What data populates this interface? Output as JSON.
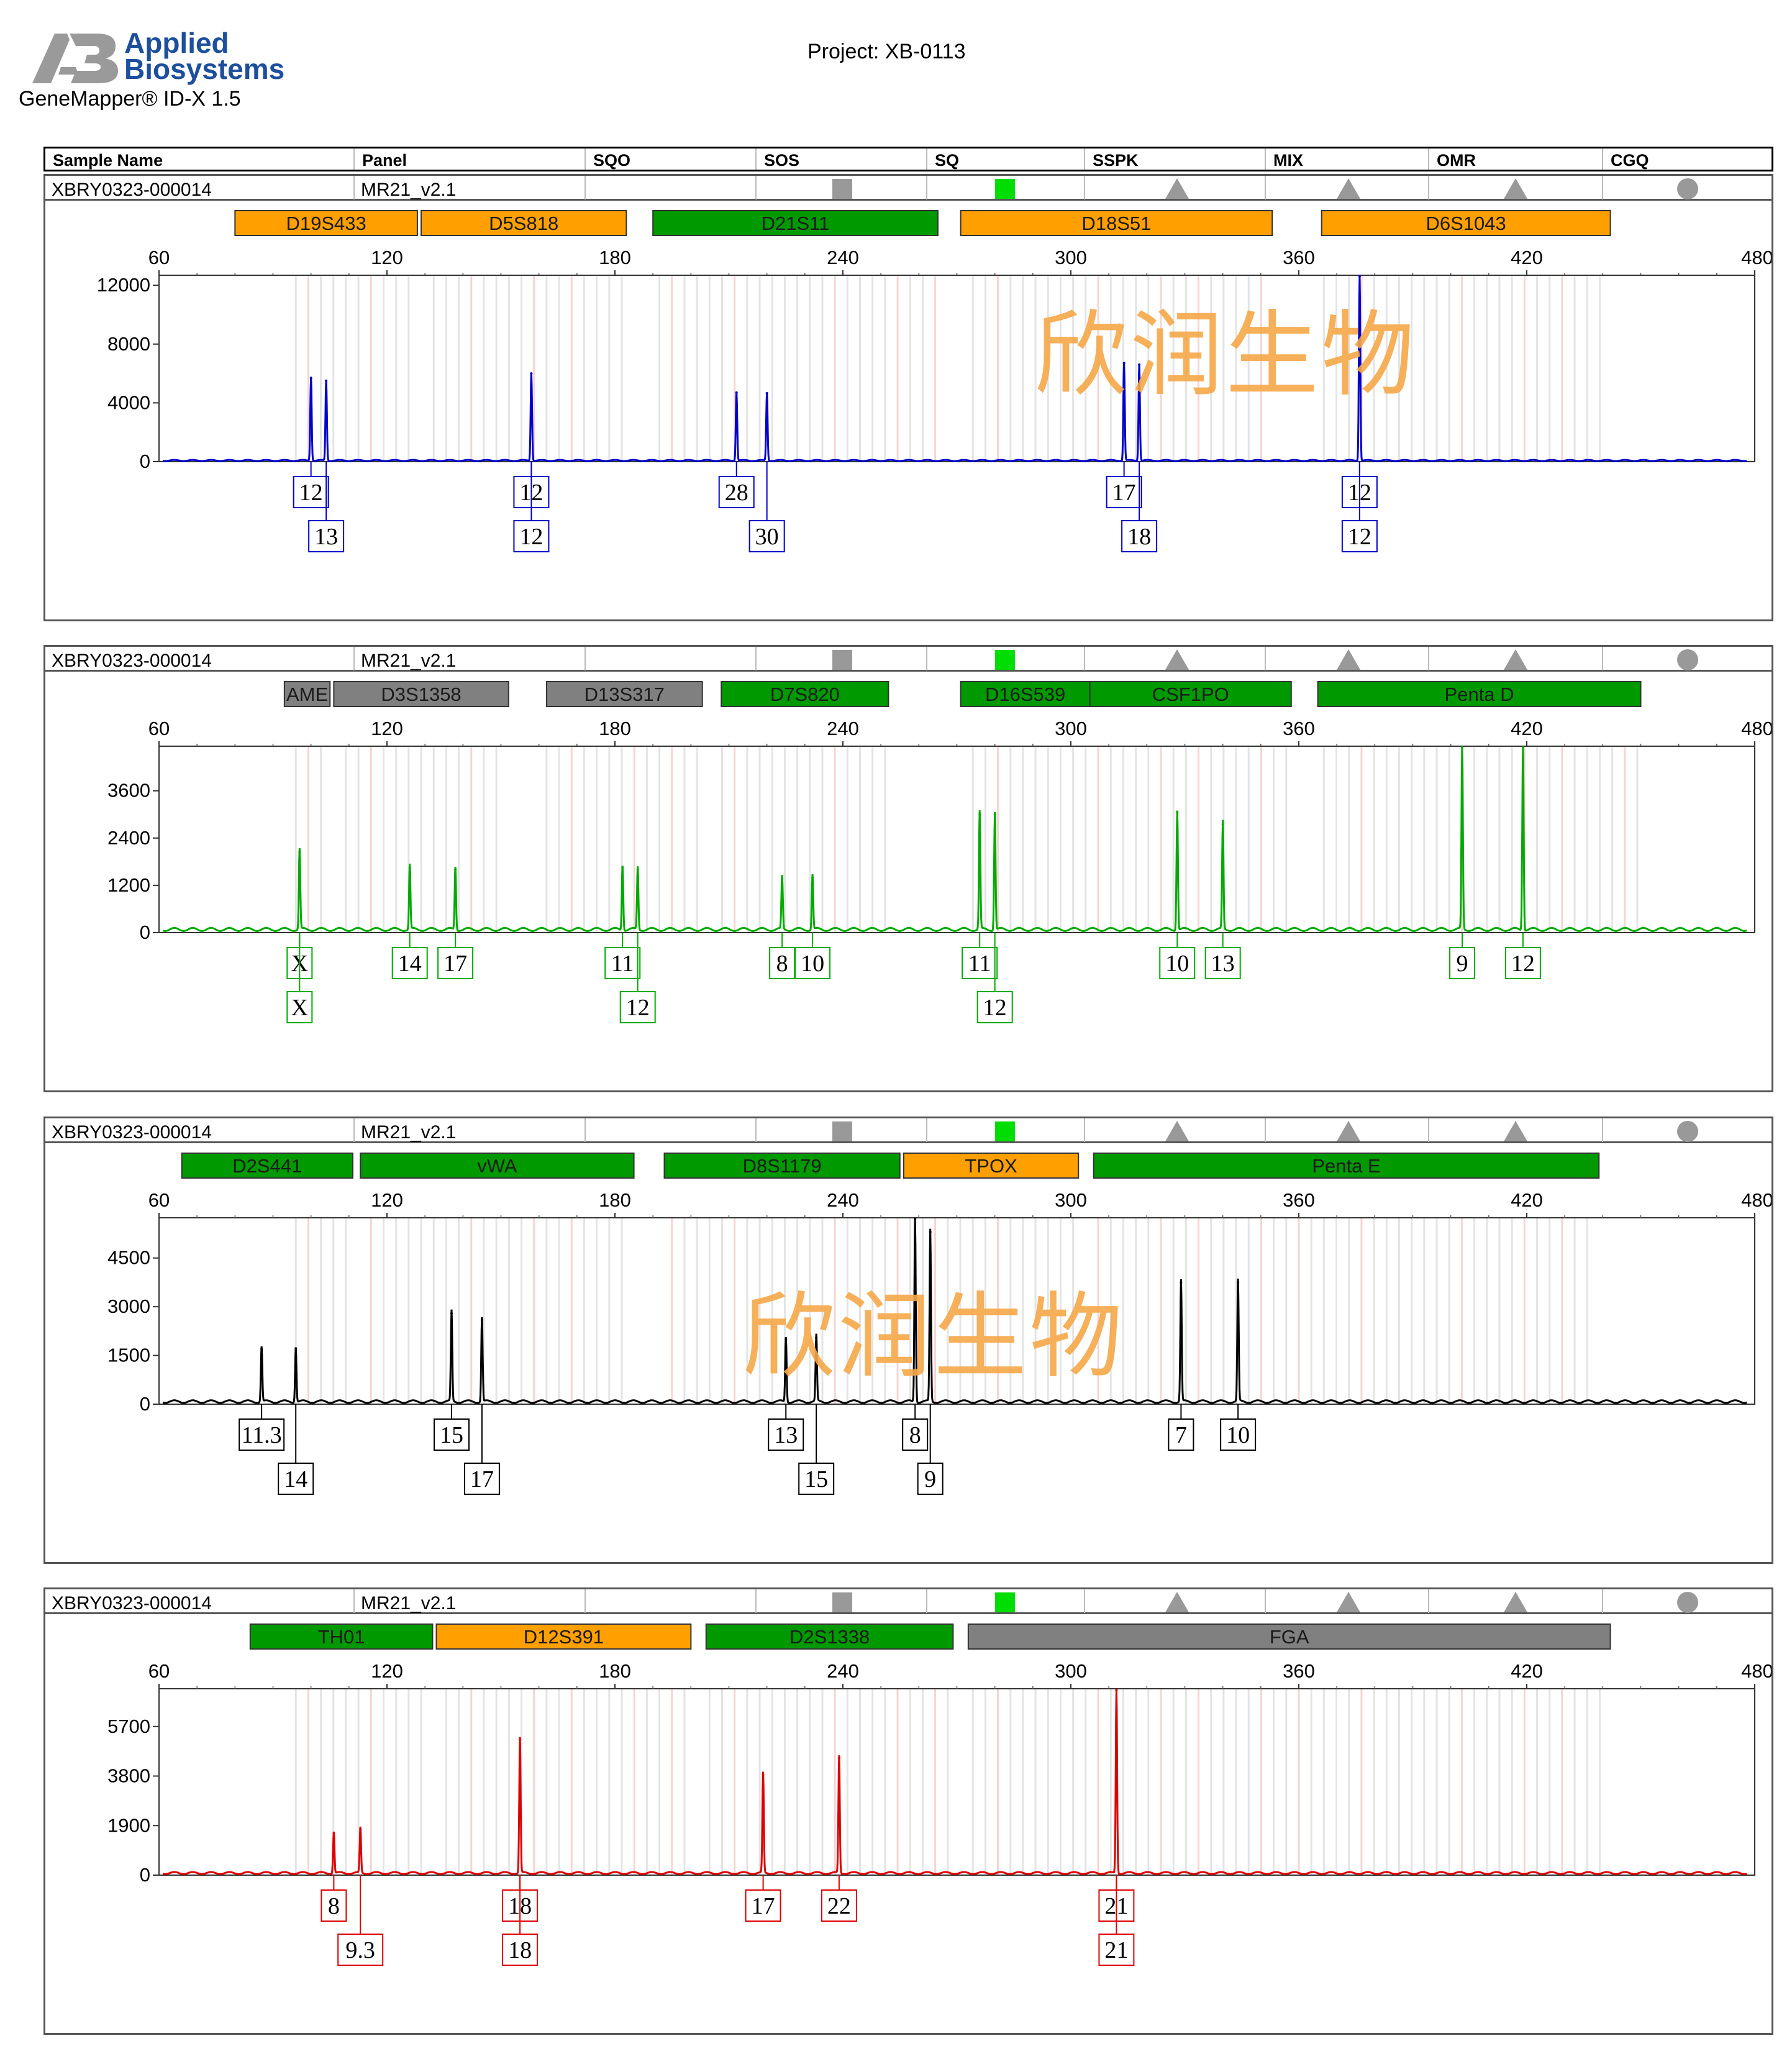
{
  "header": {
    "brand_line1": "Applied",
    "brand_line2": "Biosystems",
    "software": "GeneMapper® ID-X  1.5",
    "project": "Project: XB-0113",
    "columns": [
      "Sample Name",
      "Panel",
      "SQO",
      "SOS",
      "SQ",
      "SSPK",
      "MIX",
      "OMR",
      "CGQ"
    ]
  },
  "colors": {
    "orange": "#ffa000",
    "green": "#009900",
    "gray": "#808080",
    "watermark": "#f6a849"
  },
  "watermark": "欣润生物",
  "x_ticks": [
    60,
    120,
    180,
    240,
    300,
    360,
    420,
    480
  ],
  "panels": [
    {
      "sample": "XBRY0323-000014",
      "panel": "MR21_v2.1",
      "quality_icons": [
        "gray-square-icon",
        "green-square-icon",
        "gray-triangle-icon",
        "gray-triangle-icon",
        "gray-triangle-icon",
        "gray-circle-icon"
      ],
      "color": "#0000cc",
      "y_ticks": [
        0,
        4000,
        8000,
        12000
      ],
      "ylim": [
        0,
        12600
      ],
      "markers": [
        {
          "name": "D19S433",
          "start": 80,
          "end": 128,
          "color": "#ffa000"
        },
        {
          "name": "D5S818",
          "start": 129,
          "end": 183,
          "color": "#ffa000"
        },
        {
          "name": "D21S11",
          "start": 190,
          "end": 265,
          "color": "#009900"
        },
        {
          "name": "D18S51",
          "start": 271,
          "end": 353,
          "color": "#ffa000"
        },
        {
          "name": "D6S1043",
          "start": 366,
          "end": 442,
          "color": "#ffa000"
        }
      ],
      "peaks": [
        {
          "x": 100,
          "y": 5700
        },
        {
          "x": 104,
          "y": 5500
        },
        {
          "x": 158,
          "y": 6000
        },
        {
          "x": 212,
          "y": 4700
        },
        {
          "x": 220,
          "y": 4650
        },
        {
          "x": 314,
          "y": 6700
        },
        {
          "x": 318,
          "y": 6600
        },
        {
          "x": 376,
          "y": 12800
        }
      ],
      "alleles": [
        {
          "label": "12",
          "x": 100,
          "row": 1
        },
        {
          "label": "13",
          "x": 104,
          "row": 2
        },
        {
          "label": "12",
          "x": 158,
          "row": 1
        },
        {
          "label": "12",
          "x": 158,
          "row": 2
        },
        {
          "label": "28",
          "x": 212,
          "row": 1
        },
        {
          "label": "30",
          "x": 220,
          "row": 2
        },
        {
          "label": "17",
          "x": 314,
          "row": 1
        },
        {
          "label": "18",
          "x": 318,
          "row": 2
        },
        {
          "label": "12",
          "x": 376,
          "row": 1
        },
        {
          "label": "12",
          "x": 376,
          "row": 2
        }
      ]
    },
    {
      "sample": "XBRY0323-000014",
      "panel": "MR21_v2.1",
      "quality_icons": [
        "gray-square-icon",
        "green-square-icon",
        "gray-triangle-icon",
        "gray-triangle-icon",
        "gray-triangle-icon",
        "gray-circle-icon"
      ],
      "color": "#00aa00",
      "y_ticks": [
        0,
        1200,
        2400,
        3600
      ],
      "ylim": [
        0,
        4700
      ],
      "markers": [
        {
          "name": "AME",
          "start": 93,
          "end": 105,
          "color": "#808080"
        },
        {
          "name": "D3S1358",
          "start": 106,
          "end": 152,
          "color": "#808080"
        },
        {
          "name": "D13S317",
          "start": 162,
          "end": 203,
          "color": "#808080"
        },
        {
          "name": "D7S820",
          "start": 208,
          "end": 252,
          "color": "#009900"
        },
        {
          "name": "D16S539",
          "start": 271,
          "end": 305,
          "color": "#009900"
        },
        {
          "name": "CSF1PO",
          "start": 305,
          "end": 358,
          "color": "#009900"
        },
        {
          "name": "Penta D",
          "start": 365,
          "end": 450,
          "color": "#009900"
        }
      ],
      "peaks": [
        {
          "x": 97,
          "y": 2050
        },
        {
          "x": 126,
          "y": 1650
        },
        {
          "x": 138,
          "y": 1600
        },
        {
          "x": 182,
          "y": 1650
        },
        {
          "x": 186,
          "y": 1600
        },
        {
          "x": 224,
          "y": 1350
        },
        {
          "x": 232,
          "y": 1400
        },
        {
          "x": 276,
          "y": 3000
        },
        {
          "x": 280,
          "y": 3000
        },
        {
          "x": 328,
          "y": 3050
        },
        {
          "x": 340,
          "y": 2750
        },
        {
          "x": 403,
          "y": 4700
        },
        {
          "x": 419,
          "y": 4700
        }
      ],
      "alleles": [
        {
          "label": "X",
          "x": 97,
          "row": 1
        },
        {
          "label": "X",
          "x": 97,
          "row": 2
        },
        {
          "label": "14",
          "x": 126,
          "row": 1
        },
        {
          "label": "17",
          "x": 138,
          "row": 1
        },
        {
          "label": "11",
          "x": 182,
          "row": 1
        },
        {
          "label": "12",
          "x": 186,
          "row": 2
        },
        {
          "label": "8",
          "x": 224,
          "row": 1
        },
        {
          "label": "10",
          "x": 232,
          "row": 1
        },
        {
          "label": "11",
          "x": 276,
          "row": 1
        },
        {
          "label": "12",
          "x": 280,
          "row": 2
        },
        {
          "label": "10",
          "x": 328,
          "row": 1
        },
        {
          "label": "13",
          "x": 340,
          "row": 1
        },
        {
          "label": "9",
          "x": 403,
          "row": 1
        },
        {
          "label": "12",
          "x": 419,
          "row": 1
        }
      ]
    },
    {
      "sample": "XBRY0323-000014",
      "panel": "MR21_v2.1",
      "quality_icons": [
        "gray-square-icon",
        "green-square-icon",
        "gray-triangle-icon",
        "gray-triangle-icon",
        "gray-triangle-icon",
        "gray-circle-icon"
      ],
      "color": "#000000",
      "y_ticks": [
        0,
        1500,
        3000,
        4500
      ],
      "ylim": [
        0,
        5700
      ],
      "markers": [
        {
          "name": "D2S441",
          "start": 66,
          "end": 111,
          "color": "#009900"
        },
        {
          "name": "vWA",
          "start": 113,
          "end": 185,
          "color": "#009900"
        },
        {
          "name": "D8S1179",
          "start": 193,
          "end": 255,
          "color": "#009900"
        },
        {
          "name": "TPOX",
          "start": 256,
          "end": 302,
          "color": "#ffa000"
        },
        {
          "name": "Penta E",
          "start": 306,
          "end": 439,
          "color": "#009900"
        }
      ],
      "peaks": [
        {
          "x": 87,
          "y": 1700
        },
        {
          "x": 96,
          "y": 1700
        },
        {
          "x": 137,
          "y": 2800
        },
        {
          "x": 145,
          "y": 2600
        },
        {
          "x": 225,
          "y": 2000
        },
        {
          "x": 233,
          "y": 2050
        },
        {
          "x": 259,
          "y": 5700
        },
        {
          "x": 263,
          "y": 5300
        },
        {
          "x": 329,
          "y": 3750
        },
        {
          "x": 344,
          "y": 3750
        }
      ],
      "alleles": [
        {
          "label": "11.3",
          "x": 87,
          "row": 1
        },
        {
          "label": "14",
          "x": 96,
          "row": 2
        },
        {
          "label": "15",
          "x": 137,
          "row": 1
        },
        {
          "label": "17",
          "x": 145,
          "row": 2
        },
        {
          "label": "13",
          "x": 225,
          "row": 1
        },
        {
          "label": "15",
          "x": 233,
          "row": 2
        },
        {
          "label": "8",
          "x": 259,
          "row": 1
        },
        {
          "label": "9",
          "x": 263,
          "row": 2
        },
        {
          "label": "7",
          "x": 329,
          "row": 1
        },
        {
          "label": "10",
          "x": 344,
          "row": 1
        }
      ]
    },
    {
      "sample": "XBRY0323-000014",
      "panel": "MR21_v2.1",
      "quality_icons": [
        "gray-square-icon",
        "green-square-icon",
        "gray-triangle-icon",
        "gray-triangle-icon",
        "gray-triangle-icon",
        "gray-circle-icon"
      ],
      "color": "#dd0000",
      "y_ticks": [
        0,
        1900,
        3800,
        5700
      ],
      "ylim": [
        0,
        7100
      ],
      "markers": [
        {
          "name": "TH01",
          "start": 84,
          "end": 132,
          "color": "#009900"
        },
        {
          "name": "D12S391",
          "start": 133,
          "end": 200,
          "color": "#ffa000"
        },
        {
          "name": "D2S1338",
          "start": 204,
          "end": 269,
          "color": "#009900"
        },
        {
          "name": "FGA",
          "start": 273,
          "end": 442,
          "color": "#808080"
        }
      ],
      "peaks": [
        {
          "x": 106,
          "y": 1600
        },
        {
          "x": 113,
          "y": 1750
        },
        {
          "x": 155,
          "y": 5200
        },
        {
          "x": 219,
          "y": 3850
        },
        {
          "x": 239,
          "y": 4500
        },
        {
          "x": 312,
          "y": 7100
        }
      ],
      "alleles": [
        {
          "label": "8",
          "x": 106,
          "row": 1
        },
        {
          "label": "9.3",
          "x": 113,
          "row": 2
        },
        {
          "label": "18",
          "x": 155,
          "row": 1
        },
        {
          "label": "18",
          "x": 155,
          "row": 2
        },
        {
          "label": "17",
          "x": 219,
          "row": 1
        },
        {
          "label": "22",
          "x": 239,
          "row": 1
        },
        {
          "label": "21",
          "x": 312,
          "row": 1
        },
        {
          "label": "21",
          "x": 312,
          "row": 2
        }
      ]
    }
  ],
  "chart_data": [
    {
      "type": "line",
      "title": "",
      "series": [
        {
          "values": [
            [
              100,
              5700
            ],
            [
              104,
              5500
            ],
            [
              158,
              6000
            ],
            [
              212,
              4700
            ],
            [
              220,
              4650
            ],
            [
              314,
              6700
            ],
            [
              318,
              6600
            ],
            [
              376,
              12800
            ]
          ]
        }
      ],
      "xlim": [
        60,
        480
      ],
      "ylim": [
        0,
        12600
      ]
    },
    {
      "type": "line",
      "title": "",
      "series": [
        {
          "values": [
            [
              97,
              2050
            ],
            [
              126,
              1650
            ],
            [
              138,
              1600
            ],
            [
              182,
              1650
            ],
            [
              186,
              1600
            ],
            [
              224,
              1350
            ],
            [
              232,
              1400
            ],
            [
              276,
              3000
            ],
            [
              280,
              3000
            ],
            [
              328,
              3050
            ],
            [
              340,
              2750
            ],
            [
              403,
              4700
            ],
            [
              419,
              4700
            ]
          ]
        }
      ],
      "xlim": [
        60,
        480
      ],
      "ylim": [
        0,
        4700
      ]
    },
    {
      "type": "line",
      "title": "",
      "series": [
        {
          "values": [
            [
              87,
              1700
            ],
            [
              96,
              1700
            ],
            [
              137,
              2800
            ],
            [
              145,
              2600
            ],
            [
              225,
              2000
            ],
            [
              233,
              2050
            ],
            [
              259,
              5700
            ],
            [
              263,
              5300
            ],
            [
              329,
              3750
            ],
            [
              344,
              3750
            ]
          ]
        }
      ],
      "xlim": [
        60,
        480
      ],
      "ylim": [
        0,
        5700
      ]
    },
    {
      "type": "line",
      "title": "",
      "series": [
        {
          "values": [
            [
              106,
              1600
            ],
            [
              113,
              1750
            ],
            [
              155,
              5200
            ],
            [
              219,
              3850
            ],
            [
              239,
              4500
            ],
            [
              312,
              7100
            ]
          ]
        }
      ],
      "xlim": [
        60,
        480
      ],
      "ylim": [
        0,
        7100
      ]
    }
  ]
}
